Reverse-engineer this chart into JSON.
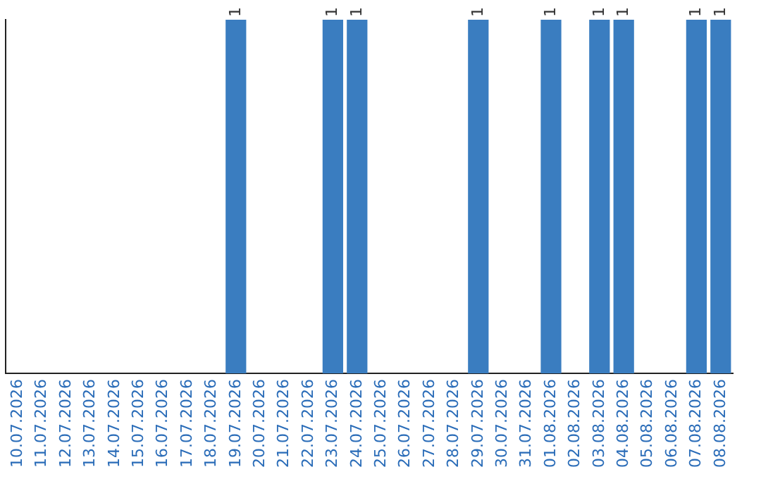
{
  "chart_data": {
    "type": "bar",
    "categories": [
      "10.07.2026",
      "11.07.2026",
      "12.07.2026",
      "13.07.2026",
      "14.07.2026",
      "15.07.2026",
      "16.07.2026",
      "17.07.2026",
      "18.07.2026",
      "19.07.2026",
      "20.07.2026",
      "21.07.2026",
      "22.07.2026",
      "23.07.2026",
      "24.07.2026",
      "25.07.2026",
      "26.07.2026",
      "27.07.2026",
      "28.07.2026",
      "29.07.2026",
      "30.07.2026",
      "31.07.2026",
      "01.08.2026",
      "02.08.2026",
      "03.08.2026",
      "04.08.2026",
      "05.08.2026",
      "06.08.2026",
      "07.08.2026",
      "08.08.2026"
    ],
    "values": [
      null,
      null,
      null,
      null,
      null,
      null,
      null,
      null,
      null,
      1,
      null,
      null,
      null,
      1,
      1,
      null,
      null,
      null,
      null,
      1,
      null,
      null,
      1,
      null,
      1,
      1,
      null,
      null,
      1,
      1
    ],
    "color": "#3a7dc0",
    "data_labels": true,
    "tick_labels": "x",
    "grid": false,
    "legend": false
  }
}
